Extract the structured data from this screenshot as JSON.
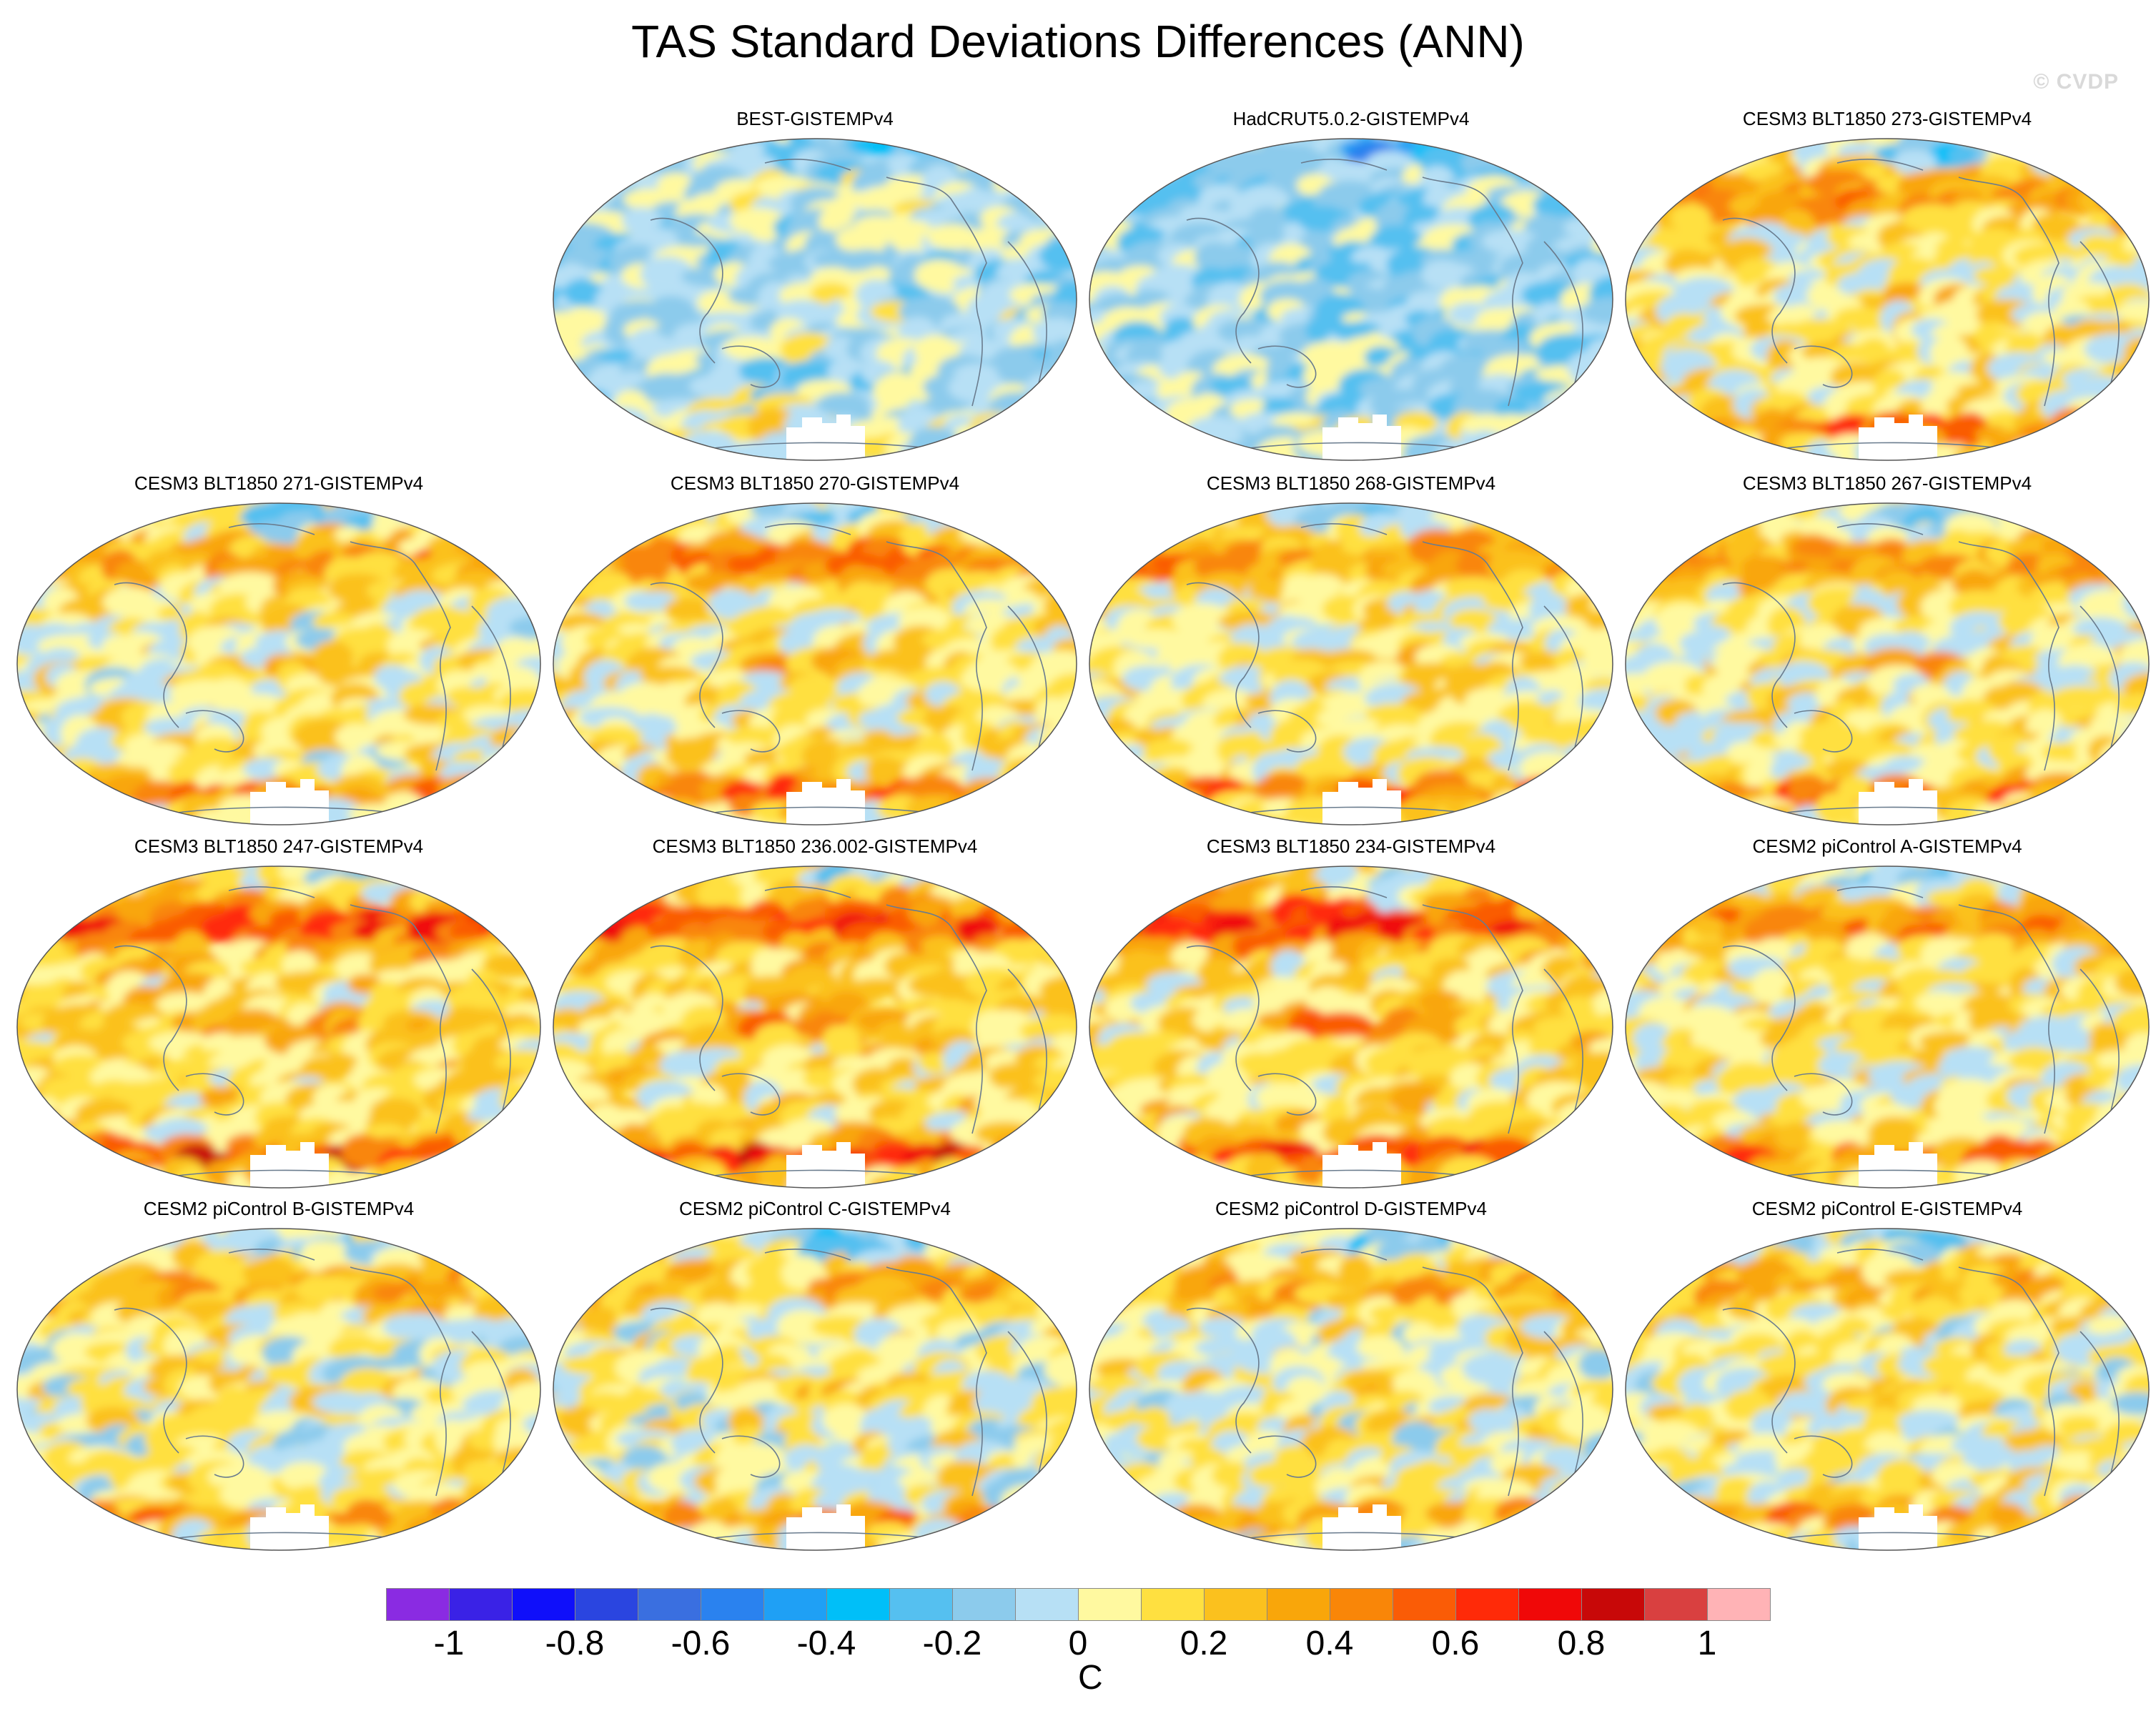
{
  "title": "TAS Standard Deviations Differences (ANN)",
  "watermark": "© CVDP",
  "panels": [
    {
      "label": "BEST-GISTEMPv4",
      "warmth": 0.05
    },
    {
      "label": "HadCRUT5.0.2-GISTEMPv4",
      "warmth": -0.05
    },
    {
      "label": "CESM3 BLT1850 273-GISTEMPv4",
      "warmth": 0.55
    },
    {
      "label": "CESM3 BLT1850 271-GISTEMPv4",
      "warmth": 0.5
    },
    {
      "label": "CESM3 BLT1850 270-GISTEMPv4",
      "warmth": 0.6
    },
    {
      "label": "CESM3 BLT1850 268-GISTEMPv4",
      "warmth": 0.55
    },
    {
      "label": "CESM3 BLT1850 267-GISTEMPv4",
      "warmth": 0.55
    },
    {
      "label": "CESM3 BLT1850 247-GISTEMPv4",
      "warmth": 0.8
    },
    {
      "label": "CESM3 BLT1850 236.002-GISTEMPv4",
      "warmth": 0.8
    },
    {
      "label": "CESM3 BLT1850 234-GISTEMPv4",
      "warmth": 0.8
    },
    {
      "label": "CESM2 piControl A-GISTEMPv4",
      "warmth": 0.55
    },
    {
      "label": "CESM2 piControl B-GISTEMPv4",
      "warmth": 0.45
    },
    {
      "label": "CESM2 piControl C-GISTEMPv4",
      "warmth": 0.45
    },
    {
      "label": "CESM2 piControl D-GISTEMPv4",
      "warmth": 0.45
    },
    {
      "label": "CESM2 piControl E-GISTEMPv4",
      "warmth": 0.45
    }
  ],
  "chart_data": {
    "type": "heatmap",
    "title": "TAS Standard Deviations Differences (ANN)",
    "projection": "Robinson global maps, Pacific-centered",
    "colorbar": {
      "unit": "C",
      "range": [
        -1.1,
        1.1
      ],
      "levels": [
        -1.1,
        -1.0,
        -0.9,
        -0.8,
        -0.7,
        -0.6,
        -0.5,
        -0.4,
        -0.3,
        -0.2,
        -0.1,
        0,
        0.1,
        0.2,
        0.3,
        0.4,
        0.5,
        0.6,
        0.7,
        0.8,
        0.9,
        1.0,
        1.1
      ],
      "colors": [
        "#8a2be2",
        "#3a22e6",
        "#0f0ffa",
        "#2a45e0",
        "#3a6fe0",
        "#2a82ef",
        "#1fa0f5",
        "#00bff8",
        "#55c0f0",
        "#8ccbec",
        "#b7e0f5",
        "#fff9a0",
        "#ffe040",
        "#fbc11e",
        "#f9a60a",
        "#f98608",
        "#fa5c06",
        "#ff2a08",
        "#f00808",
        "#c80808",
        "#d94040",
        "#ffb3b6"
      ],
      "tick_labels": [
        "-1",
        "-0.8",
        "-0.6",
        "-0.4",
        "-0.2",
        "0",
        "0.2",
        "0.4",
        "0.6",
        "0.8",
        "1"
      ],
      "tick_values": [
        -1,
        -0.8,
        -0.6,
        -0.4,
        -0.2,
        0,
        0.2,
        0.4,
        0.6,
        0.8,
        1
      ]
    }
  }
}
